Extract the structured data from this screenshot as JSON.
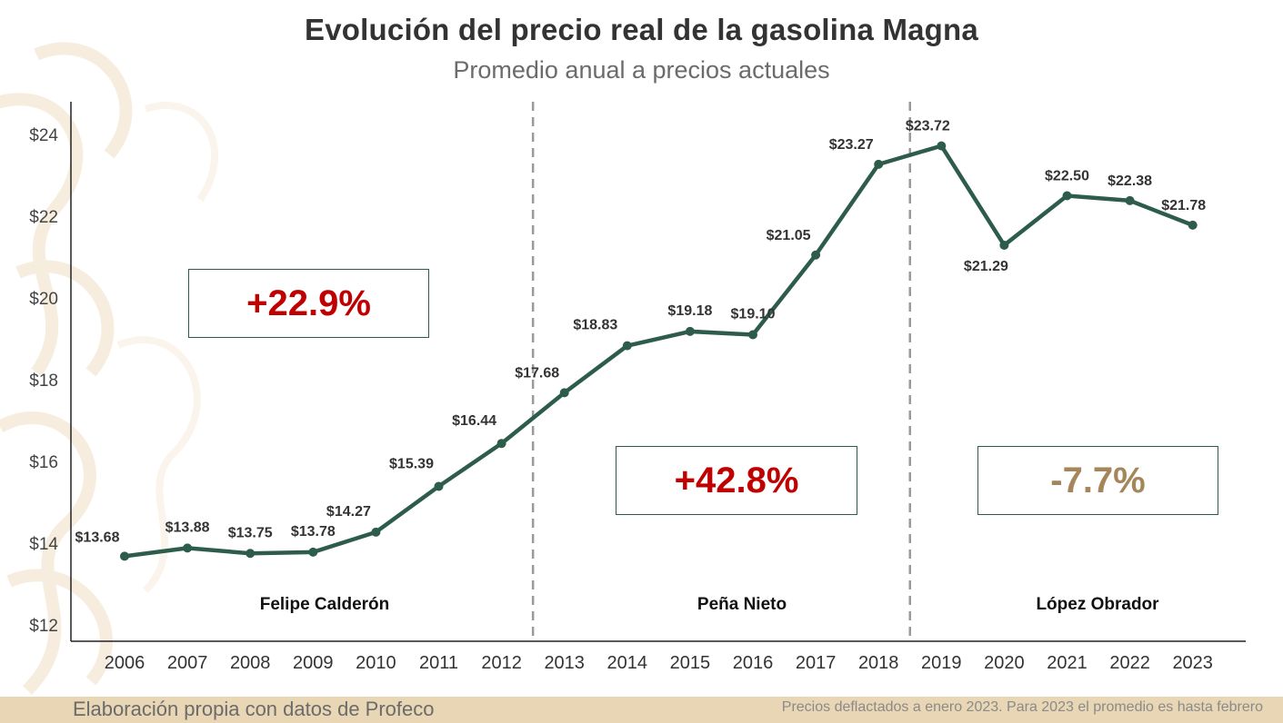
{
  "title": "Evolución del precio real de la gasolina Magna",
  "subtitle": "Promedio anual a precios actuales",
  "chart_data": {
    "type": "line",
    "title": "Evolución del precio real de la gasolina Magna",
    "subtitle": "Promedio anual a precios actuales",
    "x": [
      "2006",
      "2007",
      "2008",
      "2009",
      "2010",
      "2011",
      "2012",
      "2013",
      "2014",
      "2015",
      "2016",
      "2017",
      "2018",
      "2019",
      "2020",
      "2021",
      "2022",
      "2023"
    ],
    "values": [
      13.68,
      13.88,
      13.75,
      13.78,
      14.27,
      15.39,
      16.44,
      17.68,
      18.83,
      19.18,
      19.1,
      21.05,
      23.27,
      23.72,
      21.29,
      22.5,
      22.38,
      21.78
    ],
    "data_labels": [
      "$13.68",
      "$13.88",
      "$13.75",
      "$13.78",
      "$14.27",
      "$15.39",
      "$16.44",
      "$17.68",
      "$18.83",
      "$19.18",
      "$19.10",
      "$21.05",
      "$23.27",
      "$23.72",
      "$21.29",
      "$22.50",
      "$22.38",
      "$21.78"
    ],
    "y_ticks": [
      12,
      14,
      16,
      18,
      20,
      22,
      24
    ],
    "y_tick_labels": [
      "$12",
      "$14",
      "$16",
      "$18",
      "$20",
      "$22",
      "$24"
    ],
    "ylim": [
      11.6,
      24.8
    ],
    "grid": false,
    "line_color": "#2d5c4a",
    "period_dividers": [
      {
        "between": [
          "2012",
          "2013"
        ]
      },
      {
        "between": [
          "2018",
          "2019"
        ]
      }
    ],
    "periods": [
      {
        "name": "Felipe Calderón",
        "change": "+22.9%",
        "change_color": "#c00000"
      },
      {
        "name": "Peña Nieto",
        "change": "+42.8%",
        "change_color": "#c00000"
      },
      {
        "name": "López Obrador",
        "change": "-7.7%",
        "change_color": "#a5865b"
      }
    ]
  },
  "footer": {
    "source": "Elaboración propia con datos de Profeco",
    "note": "Precios deflactados a enero 2023. Para 2023 el promedio es hasta febrero",
    "bar_color": "#e9d6b4"
  }
}
